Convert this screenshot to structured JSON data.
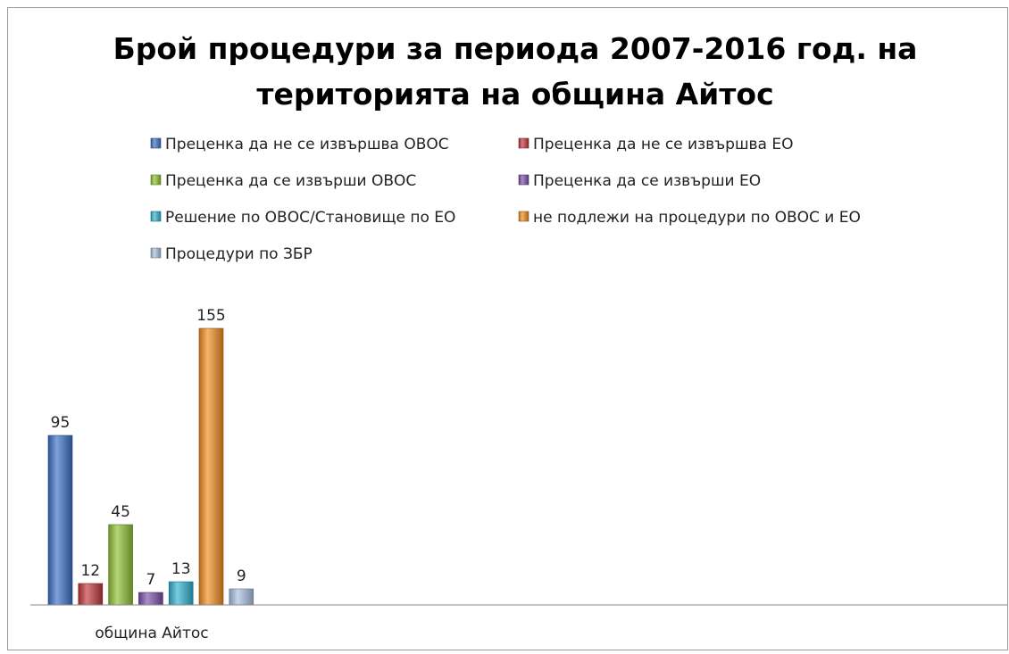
{
  "chart_data": {
    "type": "bar",
    "title_lines": [
      "Брой процедури за периода 2007-2016 год. на",
      "територията на община Айтос"
    ],
    "categories": [
      "община Айтос"
    ],
    "series": [
      {
        "name": "Преценка да не се извършва ОВОС",
        "values": [
          95
        ],
        "color": "#3a6fc4"
      },
      {
        "name": "Преценка да не се извършва ЕО",
        "values": [
          12
        ],
        "color": "#c0363a"
      },
      {
        "name": "Преценка да се извърши ОВОС",
        "values": [
          45
        ],
        "color": "#8fbf32"
      },
      {
        "name": "Преценка да се извърши ЕО",
        "values": [
          7
        ],
        "color": "#7b4fa8"
      },
      {
        "name": "Решение по ОВОС/Становище по ЕО",
        "values": [
          13
        ],
        "color": "#2fb1cf"
      },
      {
        "name": "не подлежи на процедури по ОВОС и ЕО",
        "values": [
          155
        ],
        "color": "#f08a1e"
      },
      {
        "name": "Процедури по ЗБР",
        "values": [
          9
        ],
        "color": "#a9bfe0"
      }
    ],
    "legend_position": "top",
    "grid": false,
    "data_labels": true
  }
}
